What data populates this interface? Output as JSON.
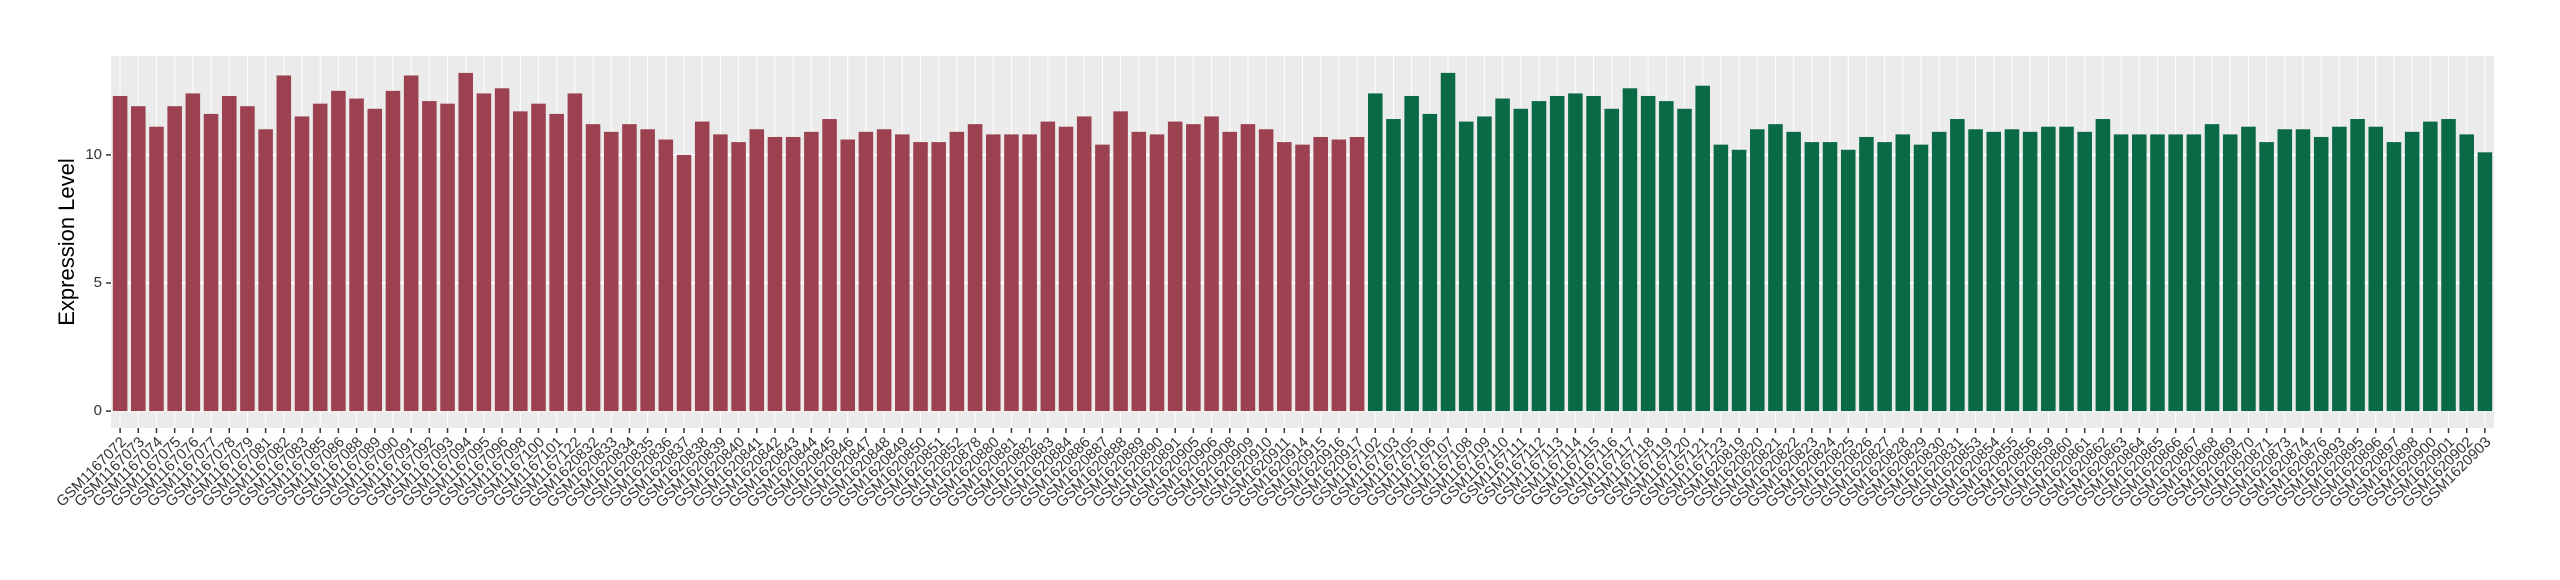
{
  "chart_data": {
    "type": "bar",
    "y_label": "Expression Level",
    "ylim": [
      -0.66,
      13.86
    ],
    "yticks": [
      0,
      5,
      10
    ],
    "grid": true,
    "series": [
      {
        "color": "#9b4150",
        "categories": [
          "GSM1167072",
          "GSM1167073",
          "GSM1167074",
          "GSM1167075",
          "GSM1167076",
          "GSM1167077",
          "GSM1167078",
          "GSM1167079",
          "GSM1167081",
          "GSM1167082",
          "GSM1167083",
          "GSM1167085",
          "GSM1167086",
          "GSM1167088",
          "GSM1167089",
          "GSM1167090",
          "GSM1167091",
          "GSM1167092",
          "GSM1167093",
          "GSM1167094",
          "GSM1167095",
          "GSM1167096",
          "GSM1167098",
          "GSM1167100",
          "GSM1167101",
          "GSM1167122",
          "GSM1620832",
          "GSM1620833",
          "GSM1620834",
          "GSM1620835",
          "GSM1620836",
          "GSM1620837",
          "GSM1620838",
          "GSM1620839",
          "GSM1620840",
          "GSM1620841",
          "GSM1620842",
          "GSM1620843",
          "GSM1620844",
          "GSM1620845",
          "GSM1620846",
          "GSM1620847",
          "GSM1620848",
          "GSM1620849",
          "GSM1620850",
          "GSM1620851",
          "GSM1620852",
          "GSM1620878",
          "GSM1620880",
          "GSM1620881",
          "GSM1620882",
          "GSM1620883",
          "GSM1620884",
          "GSM1620886",
          "GSM1620887",
          "GSM1620888",
          "GSM1620889",
          "GSM1620890",
          "GSM1620891",
          "GSM1620905",
          "GSM1620906",
          "GSM1620908",
          "GSM1620909",
          "GSM1620910",
          "GSM1620911",
          "GSM1620914",
          "GSM1620915",
          "GSM1620916",
          "GSM1620917"
        ],
        "values": [
          12.3,
          11.9,
          11.1,
          11.9,
          12.4,
          11.6,
          12.3,
          11.9,
          11.0,
          13.1,
          11.5,
          12.0,
          12.5,
          12.2,
          11.8,
          12.5,
          13.1,
          12.1,
          12.0,
          13.2,
          12.4,
          12.6,
          11.7,
          12.0,
          11.6,
          12.4,
          11.2,
          10.9,
          11.2,
          11.0,
          10.6,
          10.0,
          11.3,
          10.8,
          10.5,
          11.0,
          10.7,
          10.7,
          10.9,
          11.4,
          10.6,
          10.9,
          11.0,
          10.8,
          10.5,
          10.5,
          10.9,
          11.2,
          10.8,
          10.8,
          10.8,
          11.3,
          11.1,
          11.5,
          10.4,
          11.7,
          10.9,
          10.8,
          11.3,
          11.2,
          11.5,
          10.9,
          11.2,
          11.0,
          10.5,
          10.4,
          10.7,
          10.6,
          10.7
        ]
      },
      {
        "color": "#0a6a45",
        "categories": [
          "GSM1167102",
          "GSM1167103",
          "GSM1167105",
          "GSM1167106",
          "GSM1167107",
          "GSM1167108",
          "GSM1167109",
          "GSM1167110",
          "GSM1167111",
          "GSM1167112",
          "GSM1167113",
          "GSM1167114",
          "GSM1167115",
          "GSM1167116",
          "GSM1167117",
          "GSM1167118",
          "GSM1167119",
          "GSM1167120",
          "GSM1167121",
          "GSM1167123",
          "GSM1620819",
          "GSM1620820",
          "GSM1620821",
          "GSM1620822",
          "GSM1620823",
          "GSM1620824",
          "GSM1620825",
          "GSM1620826",
          "GSM1620827",
          "GSM1620828",
          "GSM1620829",
          "GSM1620830",
          "GSM1620831",
          "GSM1620853",
          "GSM1620854",
          "GSM1620855",
          "GSM1620856",
          "GSM1620859",
          "GSM1620860",
          "GSM1620861",
          "GSM1620862",
          "GSM1620863",
          "GSM1620864",
          "GSM1620865",
          "GSM1620866",
          "GSM1620867",
          "GSM1620868",
          "GSM1620869",
          "GSM1620870",
          "GSM1620871",
          "GSM1620873",
          "GSM1620874",
          "GSM1620876",
          "GSM1620893",
          "GSM1620895",
          "GSM1620896",
          "GSM1620897",
          "GSM1620898",
          "GSM1620900",
          "GSM1620901",
          "GSM1620902",
          "GSM1620903"
        ],
        "values": [
          12.4,
          11.4,
          12.3,
          11.6,
          13.2,
          11.3,
          11.5,
          12.2,
          11.8,
          12.1,
          12.3,
          12.4,
          12.3,
          11.8,
          12.6,
          12.3,
          12.1,
          11.8,
          12.7,
          10.4,
          10.2,
          11.0,
          11.2,
          10.9,
          10.5,
          10.5,
          10.2,
          10.7,
          10.5,
          10.8,
          10.4,
          10.9,
          11.4,
          11.0,
          10.9,
          11.0,
          10.9,
          11.1,
          11.1,
          10.9,
          11.4,
          10.8,
          10.8,
          10.8,
          10.8,
          10.8,
          11.2,
          10.8,
          11.1,
          10.5,
          11.0,
          11.0,
          10.7,
          11.1,
          11.4,
          11.1,
          10.5,
          10.9,
          11.3,
          11.4,
          10.8,
          10.1
        ]
      }
    ]
  }
}
